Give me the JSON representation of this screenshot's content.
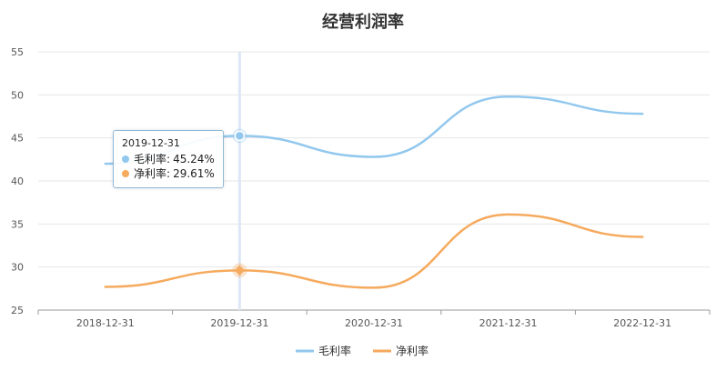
{
  "chart_data": {
    "type": "line",
    "title": "经营利润率",
    "categories": [
      "2018-12-31",
      "2019-12-31",
      "2020-12-31",
      "2021-12-31",
      "2022-12-31"
    ],
    "series": [
      {
        "name": "毛利率",
        "values": [
          42.0,
          45.24,
          42.8,
          49.8,
          47.8
        ],
        "color": "#92c8ee"
      },
      {
        "name": "净利率",
        "values": [
          27.7,
          29.61,
          27.6,
          36.1,
          33.5
        ],
        "color": "#f5aa5e"
      }
    ],
    "ylim": [
      25,
      55
    ],
    "yticks": [
      25,
      30,
      35,
      40,
      45,
      50,
      55
    ],
    "grid": true,
    "legend": "bottom-center",
    "tooltip": {
      "date": "2019-12-31",
      "rows": [
        {
          "label": "毛利率",
          "value": "45.24%",
          "color": "#92c8ee"
        },
        {
          "label": "净利率",
          "value": "29.61%",
          "color": "#f5aa5e"
        }
      ]
    }
  }
}
